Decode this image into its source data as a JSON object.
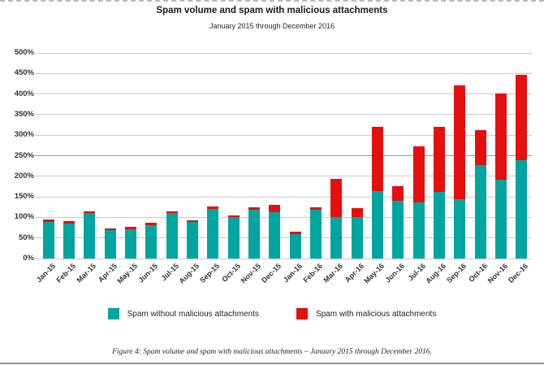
{
  "page": {
    "title": "Spam volume and spam with malicious attachments",
    "subtitle": "January 2015 through December 2016",
    "caption": "Figure 4: Spam volume and spam with malicious attachments  –  January 2015 through December 2016."
  },
  "legend": {
    "items": [
      {
        "label": "Spam without malicious attachments",
        "color": "#00a5a0"
      },
      {
        "label": "Spam with malicious attachments",
        "color": "#e60f0f"
      }
    ]
  },
  "colors": {
    "grid": "#c9c9c9",
    "grid_dark": "#9a9a9a",
    "axis_text": "#333333",
    "teal": "#00a5a0",
    "red": "#e60f0f"
  },
  "chart_data": {
    "type": "bar",
    "stacked": true,
    "title": "Spam volume and spam with malicious attachments",
    "subtitle": "January 2015 through December 2016",
    "xlabel": "",
    "ylabel": "",
    "ylim": [
      0,
      500
    ],
    "ytick_step": 50,
    "ytick_suffix": "%",
    "grid": true,
    "legend_position": "bottom",
    "categories": [
      "Jan-15",
      "Feb-15",
      "Mar-15",
      "Apr-15",
      "May-15",
      "Jun-15",
      "Jul-15",
      "Aug-15",
      "Sep-15",
      "Oct-15",
      "Nov-15",
      "Dec-15",
      "Jan-16",
      "Feb-16",
      "Mar-16",
      "Apr-16",
      "May-16",
      "Jun-16",
      "Jul-16",
      "Aug-16",
      "Sep-16",
      "Oct-16",
      "Nov-16",
      "Dec-16"
    ],
    "series": [
      {
        "name": "Spam without malicious attachments",
        "color": "#00a5a0",
        "values": [
          89,
          84,
          110,
          70,
          72,
          81,
          110,
          89,
          121,
          100,
          119,
          112,
          60,
          118,
          101,
          100,
          165,
          140,
          137,
          163,
          144,
          228,
          192,
          240
        ]
      },
      {
        "name": "Spam with malicious attachments",
        "color": "#e60f0f",
        "values": [
          6,
          6,
          4,
          4,
          5,
          5,
          4,
          4,
          5,
          4,
          5,
          18,
          5,
          6,
          92,
          22,
          155,
          35,
          135,
          157,
          276,
          84,
          210,
          207
        ]
      }
    ]
  }
}
